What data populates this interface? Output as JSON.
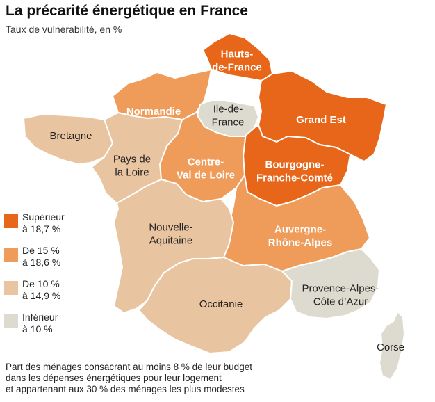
{
  "title": "La précarité énergétique en France",
  "subtitle": "Taux de vulnérabilité, en %",
  "colors": {
    "superieur": "#e8661a",
    "de15": "#ef9b5a",
    "de10": "#e9c4a0",
    "inferieur": "#dddbd0",
    "border": "#ffffff"
  },
  "legend": [
    {
      "line1": "Supérieur",
      "line2": "à 18,7 %",
      "category": "superieur"
    },
    {
      "line1": "De 15 %",
      "line2": "à 18,6 %",
      "category": "de15"
    },
    {
      "line1": "De 10 %",
      "line2": "à 14,9 %",
      "category": "de10"
    },
    {
      "line1": "Inférieur",
      "line2": "à 10 %",
      "category": "inferieur"
    }
  ],
  "regions": [
    {
      "name_lines": [
        "Hauts-",
        "de-France"
      ],
      "category": "superieur"
    },
    {
      "name_lines": [
        "Grand Est"
      ],
      "category": "superieur"
    },
    {
      "name_lines": [
        "Bourgogne-",
        "Franche-Comté"
      ],
      "category": "superieur"
    },
    {
      "name_lines": [
        "Normandie"
      ],
      "category": "de15"
    },
    {
      "name_lines": [
        "Centre-",
        "Val de Loire"
      ],
      "category": "de15"
    },
    {
      "name_lines": [
        "Auvergne-",
        "Rhône-Alpes"
      ],
      "category": "de15"
    },
    {
      "name_lines": [
        "Bretagne"
      ],
      "category": "de10"
    },
    {
      "name_lines": [
        "Pays de",
        "la Loire"
      ],
      "category": "de10"
    },
    {
      "name_lines": [
        "Nouvelle-",
        "Aquitaine"
      ],
      "category": "de10"
    },
    {
      "name_lines": [
        "Occitanie"
      ],
      "category": "de10"
    },
    {
      "name_lines": [
        "Ile-de-",
        "France"
      ],
      "category": "inferieur"
    },
    {
      "name_lines": [
        "Provence-Alpes-",
        "Côte d’Azur"
      ],
      "category": "inferieur"
    },
    {
      "name_lines": [
        "Corse"
      ],
      "category": "inferieur"
    }
  ],
  "footnote": [
    "Part des ménages consacrant au moins 8 % de leur budget",
    "dans les dépenses énergétiques pour leur logement",
    "et appartenant aux 30 % des ménages les plus modestes"
  ]
}
